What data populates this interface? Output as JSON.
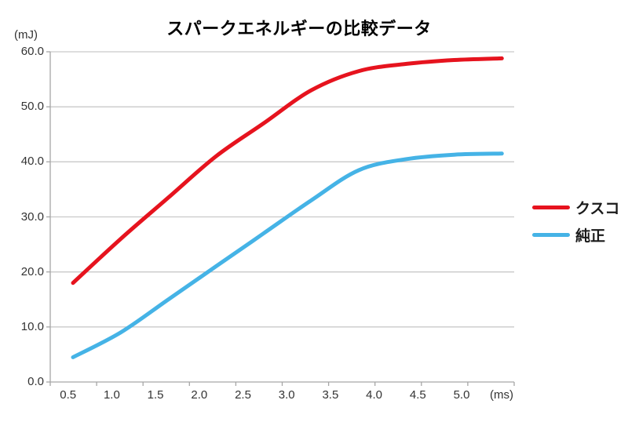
{
  "title": "スパークエネルギーの比較データ",
  "y_axis": {
    "unit": "(mJ)",
    "ticks": [
      "60.0",
      "50.0",
      "40.0",
      "30.0",
      "20.0",
      "10.0",
      "0.0"
    ]
  },
  "x_axis": {
    "unit": "(ms)",
    "ticks": [
      "0.5",
      "1.0",
      "1.5",
      "2.0",
      "2.5",
      "3.0",
      "3.5",
      "4.0",
      "4.5",
      "5.0"
    ]
  },
  "legend": {
    "items": [
      {
        "label": "クスコ",
        "color": "#e6131e"
      },
      {
        "label": "純正",
        "color": "#45b3e6"
      }
    ]
  },
  "chart_data": {
    "type": "line",
    "title": "スパークエネルギーの比較データ",
    "xlabel": "(ms)",
    "ylabel": "(mJ)",
    "x": [
      0.5,
      1.0,
      1.5,
      2.0,
      2.5,
      3.0,
      3.5,
      4.0,
      4.5,
      5.0
    ],
    "series": [
      {
        "name": "クスコ",
        "color": "#e6131e",
        "values": [
          18.0,
          26.0,
          33.5,
          41.0,
          47.0,
          53.0,
          56.5,
          57.8,
          58.5,
          58.8
        ]
      },
      {
        "name": "純正",
        "color": "#45b3e6",
        "values": [
          4.5,
          9.0,
          15.0,
          21.0,
          27.0,
          33.0,
          38.5,
          40.5,
          41.3,
          41.5
        ]
      }
    ],
    "ylim": [
      0,
      60
    ],
    "xlim": [
      0.5,
      5.0
    ],
    "grid": true,
    "gridline_interval": 10,
    "legend_position": "right",
    "line_style": "smooth",
    "line_width": 5
  }
}
